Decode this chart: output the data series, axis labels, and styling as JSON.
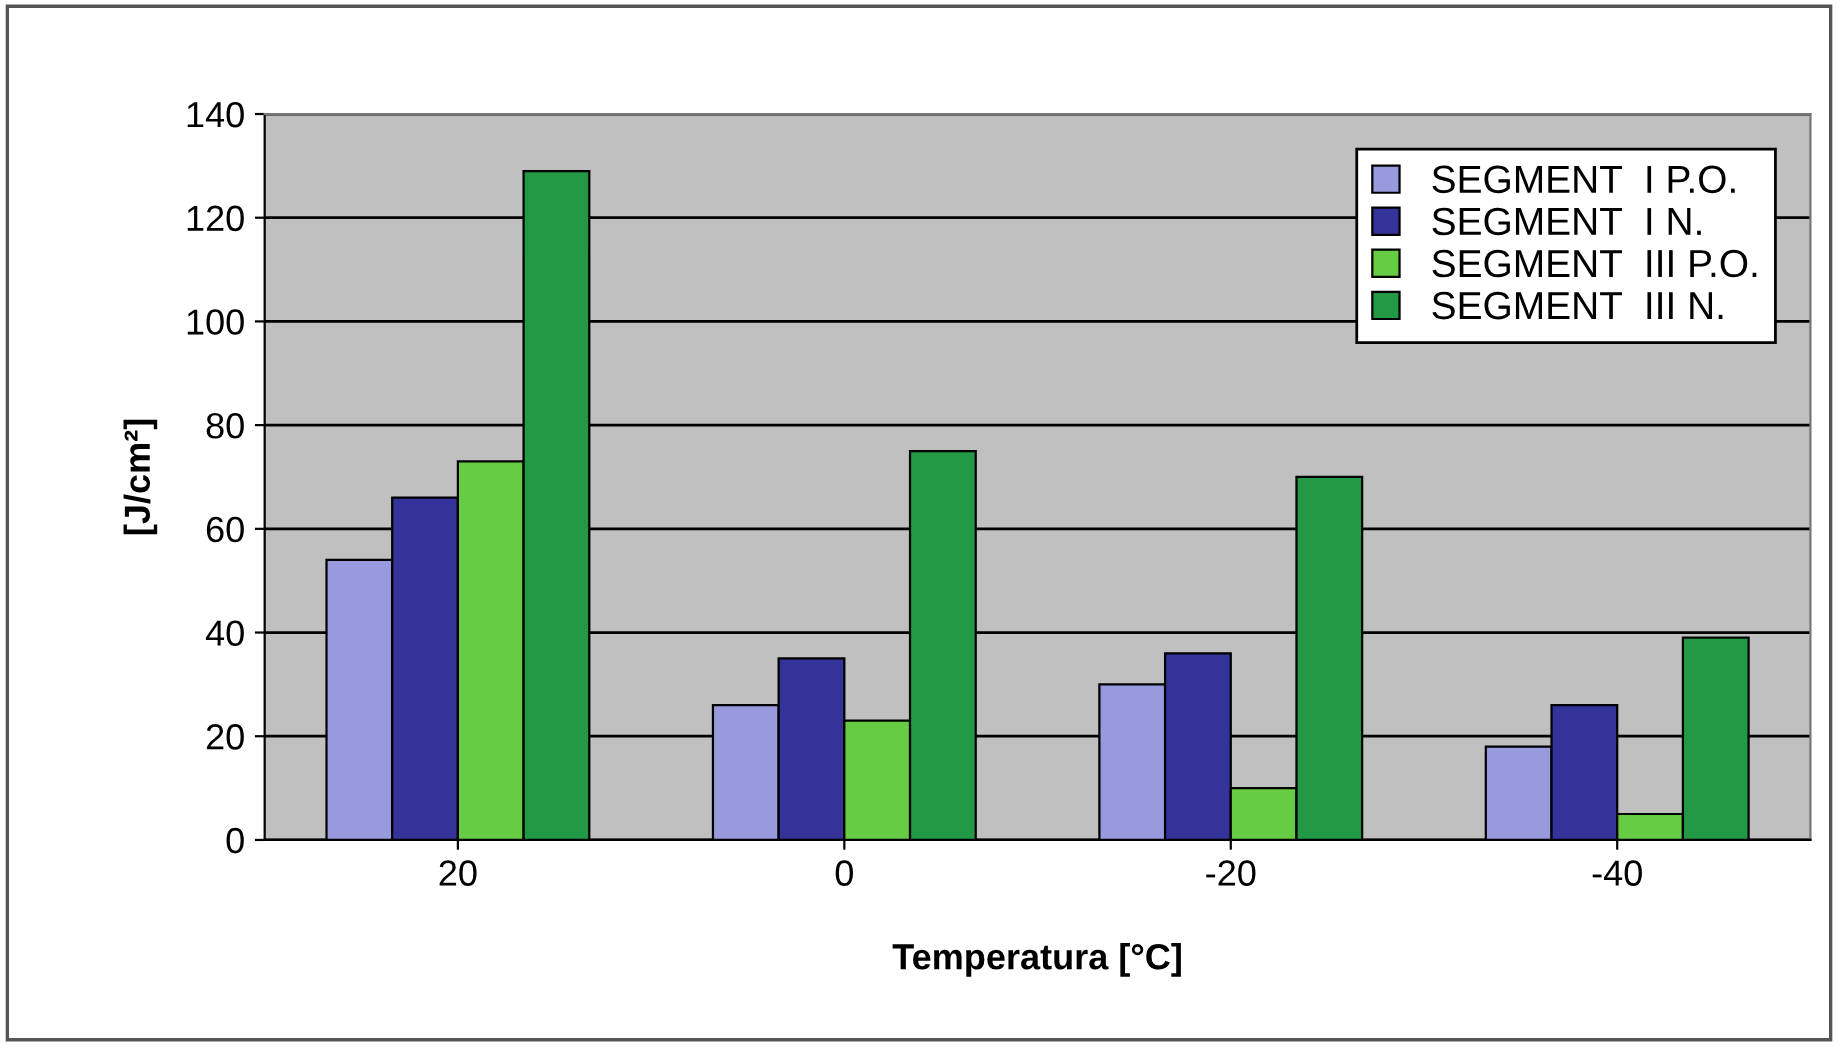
{
  "chart_data": {
    "type": "bar",
    "xlabel": "Temperatura [°C]",
    "ylabel": "[J/cm²]",
    "categories": [
      "20",
      "0",
      "-20",
      "-40"
    ],
    "series": [
      {
        "name": "SEGMENT  I P.O.",
        "color": "#9999dd",
        "values": [
          54,
          26,
          30,
          18
        ]
      },
      {
        "name": "SEGMENT  I N.",
        "color": "#333399",
        "values": [
          66,
          35,
          36,
          26
        ]
      },
      {
        "name": "SEGMENT  III P.O.",
        "color": "#66cc44",
        "values": [
          73,
          23,
          10,
          5
        ]
      },
      {
        "name": "SEGMENT  III N.",
        "color": "#229944",
        "values": [
          129,
          75,
          70,
          39
        ]
      }
    ],
    "ylim": [
      0,
      140
    ],
    "yticks": [
      0,
      20,
      40,
      60,
      80,
      100,
      120,
      140
    ],
    "grid": "y",
    "legend": "top right"
  }
}
